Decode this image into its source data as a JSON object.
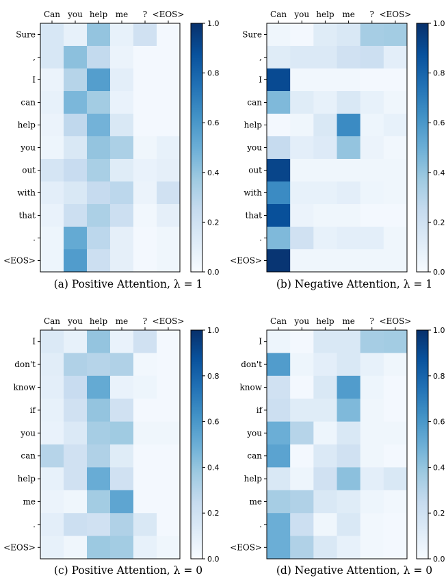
{
  "chart_data": [
    {
      "type": "heatmap",
      "panel": "a",
      "caption": "(a) Positive Attention, λ = 1",
      "x_tokens": [
        "Can",
        "you",
        "help",
        "me",
        "?",
        "<EOS>"
      ],
      "y_tokens": [
        "Sure",
        ",",
        "I",
        "can",
        "help",
        "you",
        "out",
        "with",
        "that",
        ".",
        "<EOS>"
      ],
      "values": [
        [
          0.16,
          0.08,
          0.4,
          0.08,
          0.2,
          0.02
        ],
        [
          0.16,
          0.42,
          0.26,
          0.06,
          0.02,
          0.02
        ],
        [
          0.06,
          0.3,
          0.57,
          0.1,
          0.02,
          0.02
        ],
        [
          0.08,
          0.46,
          0.36,
          0.07,
          0.02,
          0.02
        ],
        [
          0.06,
          0.27,
          0.48,
          0.15,
          0.02,
          0.02
        ],
        [
          0.05,
          0.15,
          0.4,
          0.33,
          0.04,
          0.08
        ],
        [
          0.17,
          0.24,
          0.34,
          0.12,
          0.07,
          0.09
        ],
        [
          0.1,
          0.15,
          0.25,
          0.28,
          0.06,
          0.2
        ],
        [
          0.07,
          0.22,
          0.33,
          0.22,
          0.03,
          0.09
        ],
        [
          0.05,
          0.52,
          0.28,
          0.09,
          0.02,
          0.04
        ],
        [
          0.05,
          0.58,
          0.22,
          0.09,
          0.02,
          0.04
        ]
      ],
      "colorbar": {
        "min": 0.0,
        "max": 1.0,
        "ticks": [
          "0.0",
          "0.2",
          "0.4",
          "0.6",
          "0.8",
          "1.0"
        ]
      }
    },
    {
      "type": "heatmap",
      "panel": "b",
      "caption": "(b) Negative Attention, λ = 1",
      "x_tokens": [
        "Can",
        "you",
        "help",
        "me",
        "?",
        "<EOS>"
      ],
      "y_tokens": [
        "Sure",
        ",",
        "I",
        "can",
        "help",
        "you",
        "out",
        "with",
        "that",
        ".",
        "<EOS>"
      ],
      "values": [
        [
          0.04,
          0.02,
          0.12,
          0.15,
          0.35,
          0.36
        ],
        [
          0.12,
          0.14,
          0.14,
          0.2,
          0.22,
          0.1
        ],
        [
          0.9,
          0.03,
          0.03,
          0.03,
          0.02,
          0.02
        ],
        [
          0.45,
          0.12,
          0.08,
          0.15,
          0.08,
          0.04
        ],
        [
          0.02,
          0.04,
          0.15,
          0.65,
          0.05,
          0.08
        ],
        [
          0.25,
          0.1,
          0.13,
          0.4,
          0.06,
          0.03
        ],
        [
          0.92,
          0.04,
          0.04,
          0.04,
          0.04,
          0.04
        ],
        [
          0.65,
          0.08,
          0.08,
          0.1,
          0.05,
          0.04
        ],
        [
          0.88,
          0.06,
          0.04,
          0.04,
          0.02,
          0.02
        ],
        [
          0.45,
          0.2,
          0.08,
          0.1,
          0.1,
          0.04
        ],
        [
          0.98,
          0.04,
          0.04,
          0.04,
          0.04,
          0.04
        ]
      ],
      "colorbar": {
        "min": 0.0,
        "max": 1.0,
        "ticks": [
          "0.0",
          "0.2",
          "0.4",
          "0.6",
          "0.8",
          "1.0"
        ]
      }
    },
    {
      "type": "heatmap",
      "panel": "c",
      "caption": "(c) Positive Attention, λ = 0",
      "x_tokens": [
        "Can",
        "you",
        "help",
        "me",
        "?",
        "<EOS>"
      ],
      "y_tokens": [
        "I",
        "don't",
        "know",
        "if",
        "you",
        "can",
        "help",
        "me",
        ".",
        "<EOS>"
      ],
      "values": [
        [
          0.14,
          0.08,
          0.4,
          0.07,
          0.2,
          0.02
        ],
        [
          0.11,
          0.32,
          0.3,
          0.32,
          0.03,
          0.02
        ],
        [
          0.1,
          0.24,
          0.52,
          0.07,
          0.05,
          0.02
        ],
        [
          0.08,
          0.2,
          0.4,
          0.2,
          0.02,
          0.02
        ],
        [
          0.07,
          0.14,
          0.35,
          0.37,
          0.04,
          0.04
        ],
        [
          0.3,
          0.2,
          0.32,
          0.12,
          0.02,
          0.02
        ],
        [
          0.08,
          0.2,
          0.51,
          0.2,
          0.02,
          0.02
        ],
        [
          0.06,
          0.04,
          0.36,
          0.54,
          0.02,
          0.02
        ],
        [
          0.1,
          0.22,
          0.2,
          0.32,
          0.15,
          0.02
        ],
        [
          0.08,
          0.04,
          0.38,
          0.36,
          0.08,
          0.04
        ]
      ],
      "colorbar": {
        "min": 0.0,
        "max": 1.0,
        "ticks": [
          "0.0",
          "0.2",
          "0.4",
          "0.6",
          "0.8",
          "1.0"
        ]
      }
    },
    {
      "type": "heatmap",
      "panel": "d",
      "caption": "(d) Negative Attention, λ = 0",
      "x_tokens": [
        "Can",
        "you",
        "help",
        "me",
        "?",
        "<EOS>"
      ],
      "y_tokens": [
        "I",
        "don't",
        "know",
        "if",
        "you",
        "can",
        "help",
        "me",
        ".",
        "<EOS>"
      ],
      "values": [
        [
          0.05,
          0.02,
          0.15,
          0.15,
          0.35,
          0.36
        ],
        [
          0.58,
          0.05,
          0.1,
          0.15,
          0.08,
          0.04
        ],
        [
          0.2,
          0.02,
          0.15,
          0.58,
          0.05,
          0.02
        ],
        [
          0.22,
          0.12,
          0.12,
          0.45,
          0.04,
          0.02
        ],
        [
          0.5,
          0.3,
          0.05,
          0.15,
          0.04,
          0.04
        ],
        [
          0.55,
          0.02,
          0.14,
          0.2,
          0.04,
          0.02
        ],
        [
          0.15,
          0.05,
          0.2,
          0.42,
          0.1,
          0.15
        ],
        [
          0.35,
          0.32,
          0.15,
          0.12,
          0.05,
          0.03
        ],
        [
          0.5,
          0.22,
          0.04,
          0.15,
          0.03,
          0.02
        ],
        [
          0.5,
          0.32,
          0.15,
          0.08,
          0.03,
          0.02
        ]
      ],
      "colorbar": {
        "min": 0.0,
        "max": 1.0,
        "ticks": [
          "0.0",
          "0.2",
          "0.4",
          "0.6",
          "0.8",
          "1.0"
        ]
      }
    }
  ]
}
